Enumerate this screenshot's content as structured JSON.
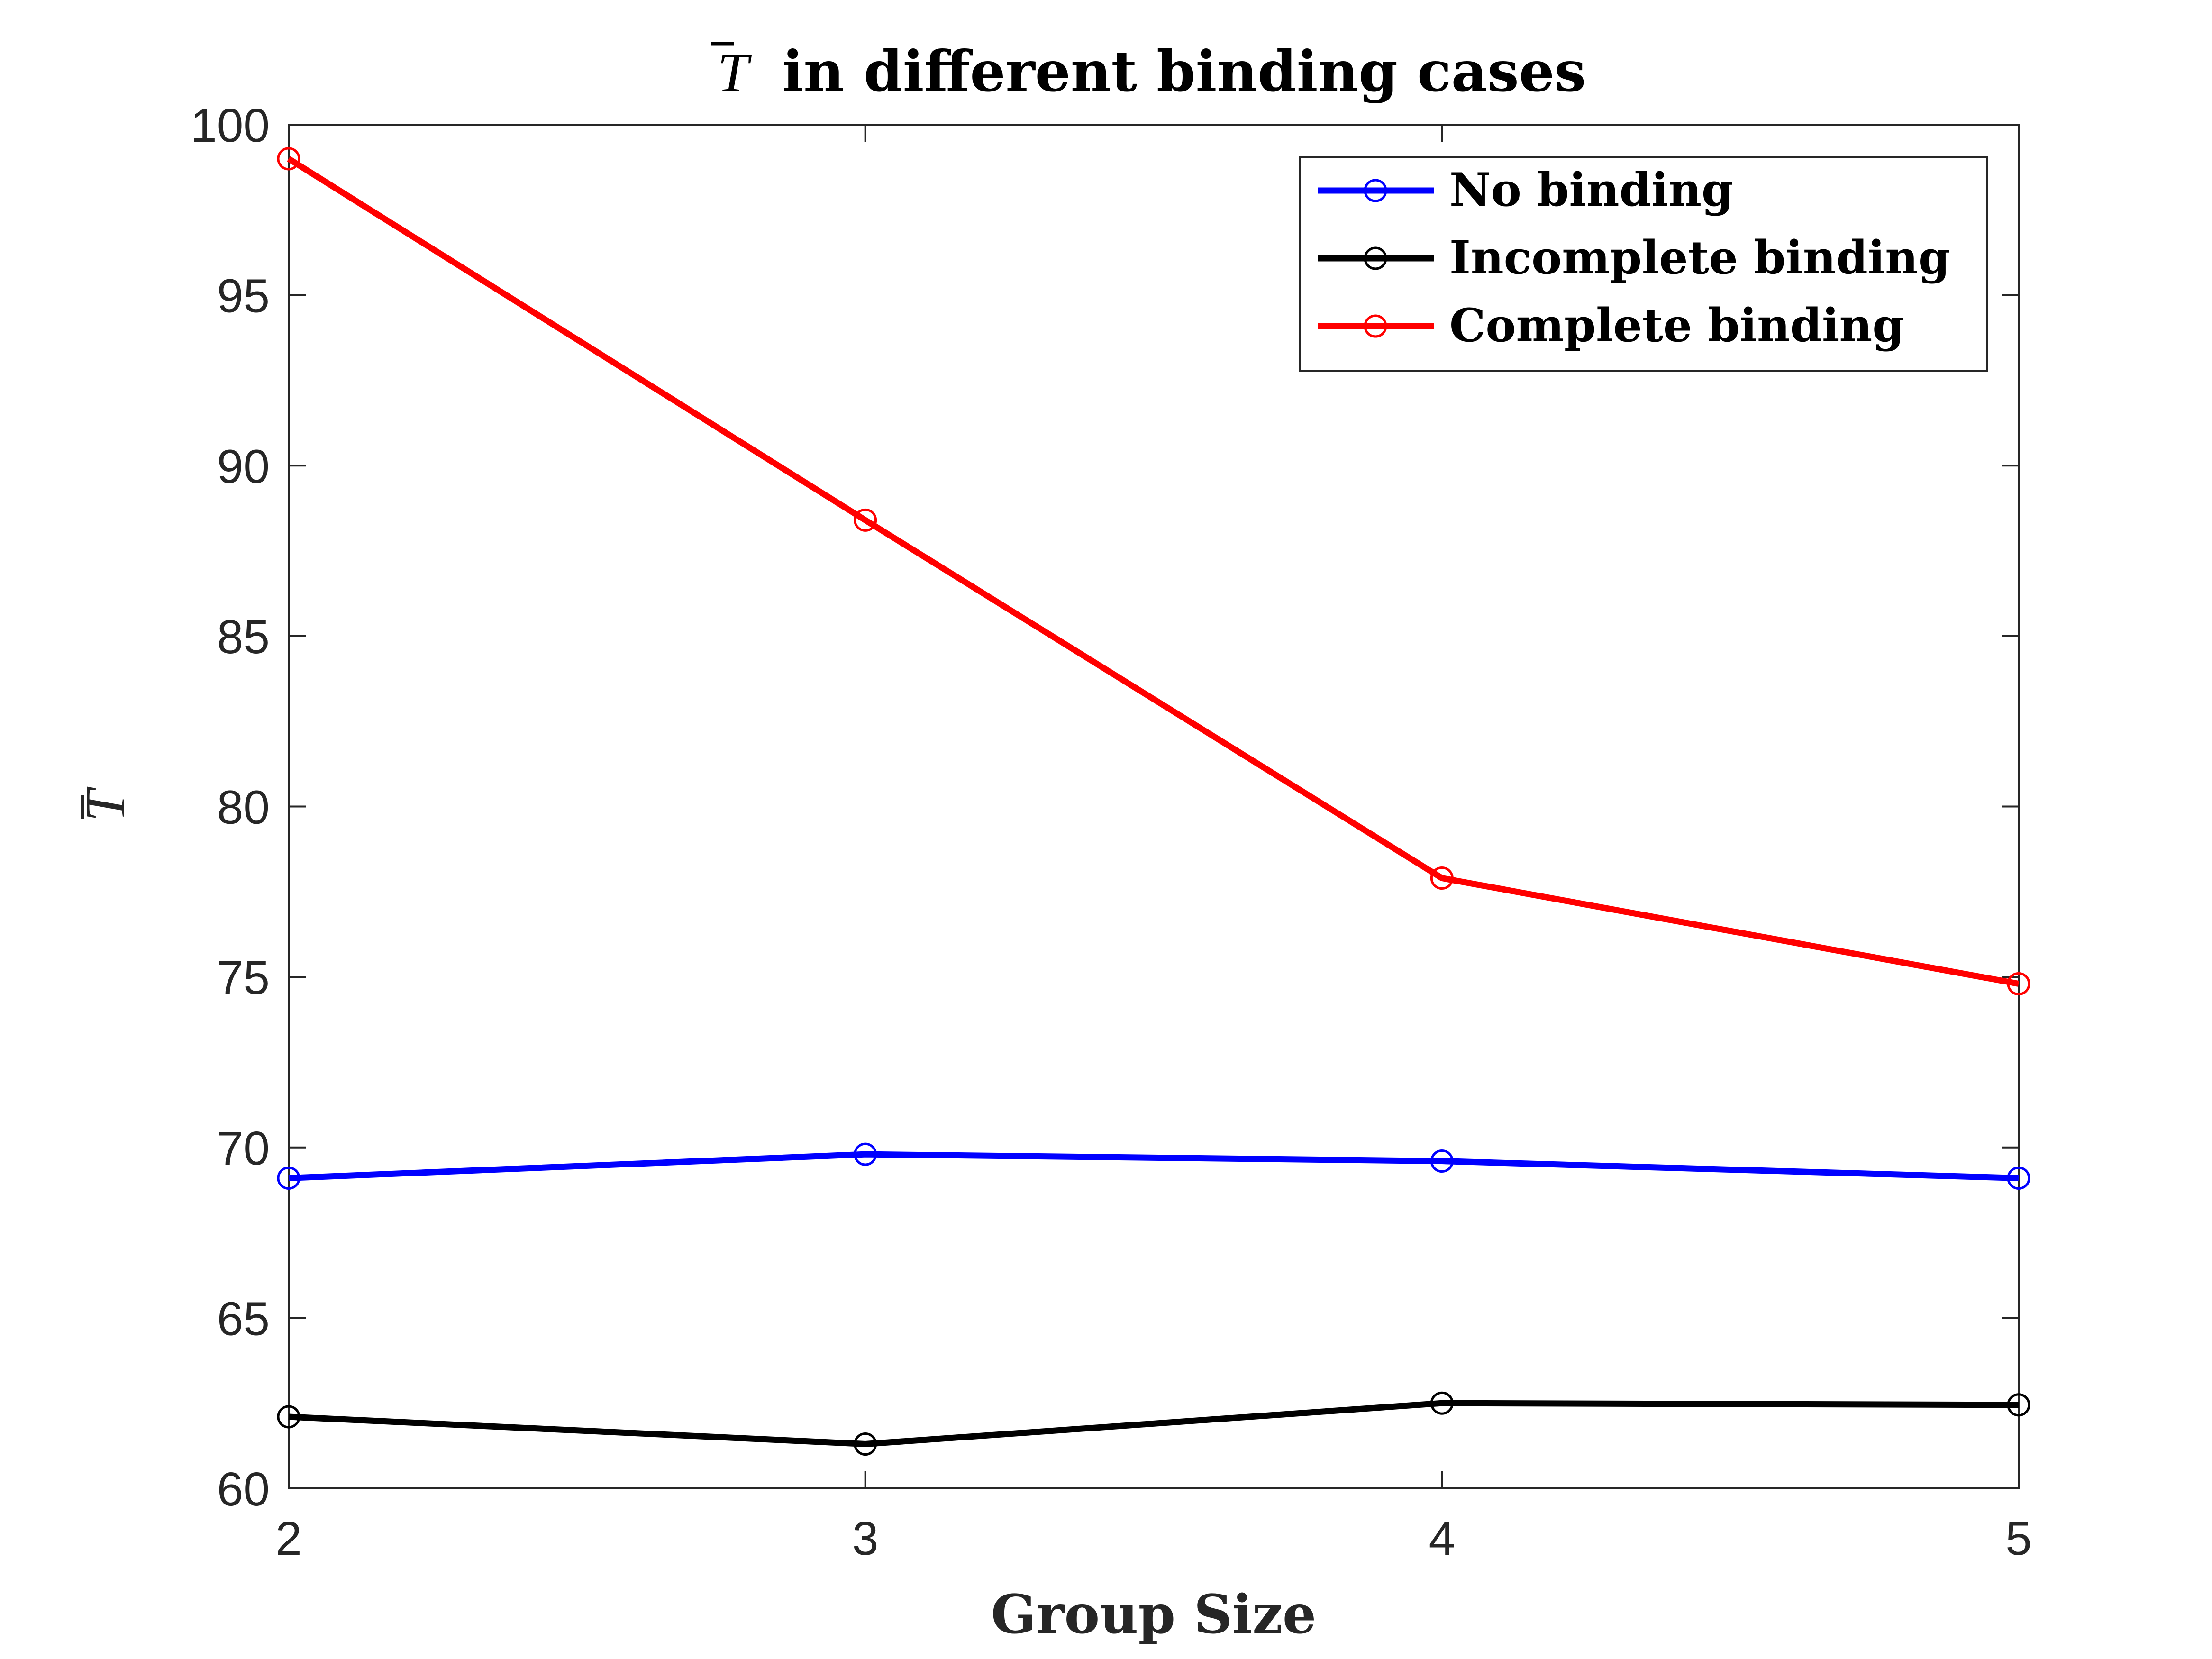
{
  "chart_data": {
    "type": "line",
    "title": "in different binding cases",
    "title_symbol": "T",
    "xlabel": "Group Size",
    "ylabel": "T",
    "x": [
      2,
      3,
      4,
      5
    ],
    "x_ticks": [
      "2",
      "3",
      "4",
      "5"
    ],
    "xlim": [
      2,
      5
    ],
    "ylim": [
      60,
      100
    ],
    "y_ticks": [
      "60",
      "65",
      "70",
      "75",
      "80",
      "85",
      "90",
      "95",
      "100"
    ],
    "grid": false,
    "legend_position": "top-right",
    "series": [
      {
        "name": "No binding",
        "values": [
          69.1,
          69.8,
          69.6,
          69.1
        ],
        "color": "#0000ff",
        "marker": "circle"
      },
      {
        "name": "Incomplete binding",
        "values": [
          62.1,
          61.3,
          62.5,
          62.45
        ],
        "color": "#000000",
        "marker": "circle"
      },
      {
        "name": "Complete binding",
        "values": [
          99.0,
          88.4,
          77.9,
          74.8
        ],
        "color": "#ff0000",
        "marker": "circle"
      }
    ]
  }
}
